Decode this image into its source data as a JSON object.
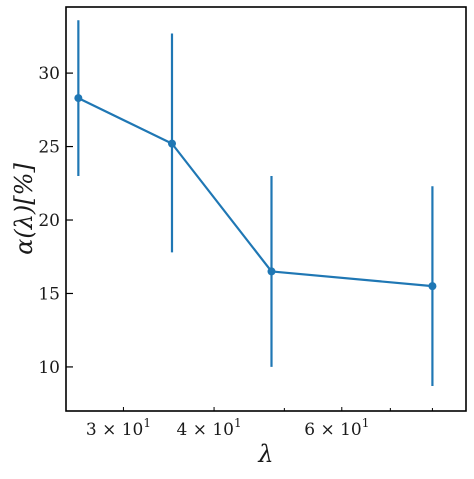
{
  "chart_data": {
    "type": "line",
    "xscale": "log",
    "xlabel": "λ",
    "ylabel": "α(λ)[%]",
    "xlim": [
      25,
      89
    ],
    "ylim": [
      7,
      34.5
    ],
    "grid": false,
    "xticks": [
      {
        "value": 30,
        "label": "3 × 10"
      },
      {
        "value": 40,
        "label": "4 × 10"
      },
      {
        "value": 60,
        "label": "6 × 10"
      }
    ],
    "xtick_exponent": "1",
    "yticks": [
      10,
      15,
      20,
      25,
      30
    ],
    "series": [
      {
        "color": "#1f77b4",
        "x": [
          26,
          35,
          48,
          80
        ],
        "y": [
          28.3,
          25.2,
          16.5,
          15.5
        ],
        "yerr_low": [
          23,
          17.8,
          10,
          8.7
        ],
        "yerr_high": [
          33.6,
          32.7,
          23,
          22.3
        ]
      }
    ]
  }
}
